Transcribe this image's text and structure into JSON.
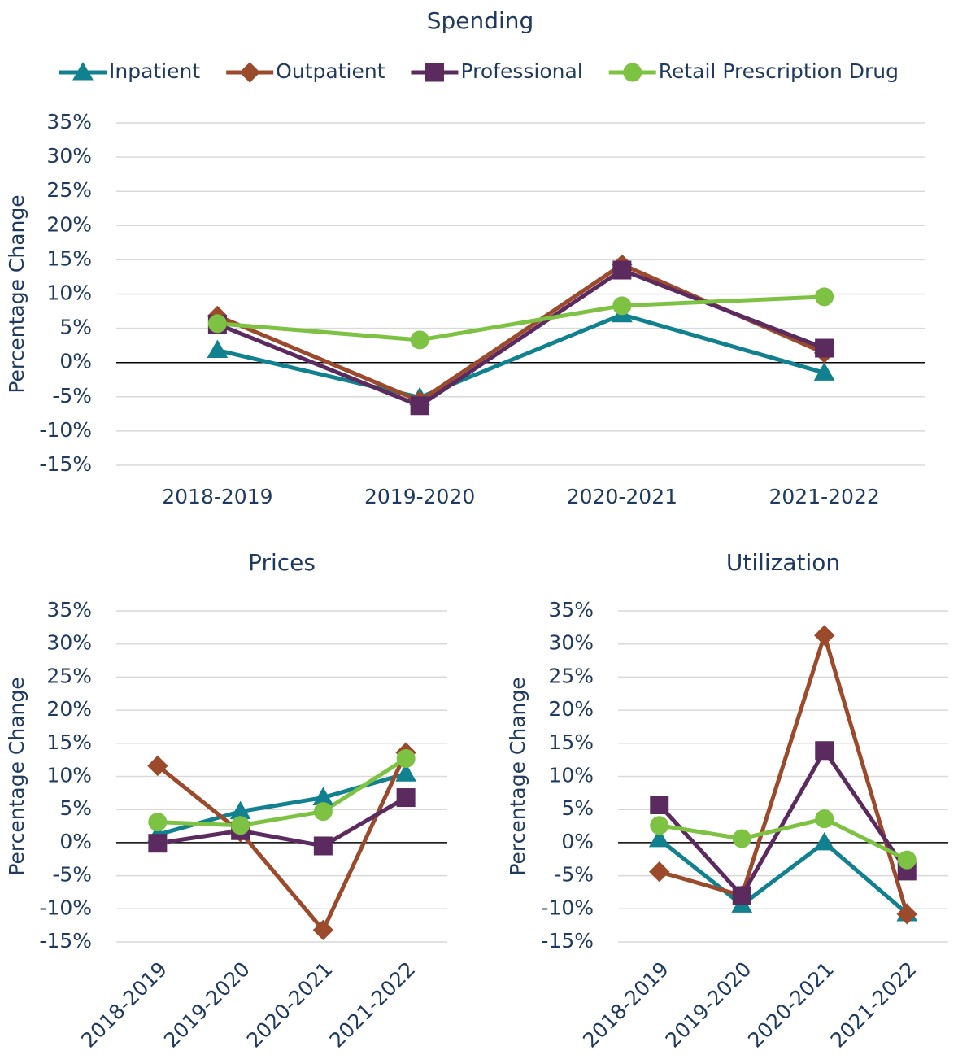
{
  "chart_data": [
    {
      "type": "line",
      "title": "Spending",
      "ylabel": "Percentage Change",
      "categories": [
        "2018-2019",
        "2019-2020",
        "2020-2021",
        "2021-2022"
      ],
      "series": [
        {
          "name": "Inpatient",
          "color": "#11808f",
          "marker": "triangle",
          "values": [
            1.8,
            -5.1,
            7.0,
            -1.5
          ]
        },
        {
          "name": "Outpatient",
          "color": "#9b4a2c",
          "marker": "diamond",
          "values": [
            6.8,
            -5.6,
            14.3,
            1.4
          ]
        },
        {
          "name": "Professional",
          "color": "#5b2a5e",
          "marker": "square",
          "values": [
            5.6,
            -6.3,
            13.5,
            2.1
          ]
        },
        {
          "name": "Retail Prescription Drug",
          "color": "#7dc242",
          "marker": "circle",
          "values": [
            5.7,
            3.3,
            8.3,
            9.6
          ]
        }
      ],
      "ylim": [
        -15,
        35
      ],
      "yticks": [
        {
          "value": -15,
          "label": "-15%"
        },
        {
          "value": -10,
          "label": "-10%"
        },
        {
          "value": -5,
          "label": "-5%"
        },
        {
          "value": 0,
          "label": "0%"
        },
        {
          "value": 5,
          "label": "5%"
        },
        {
          "value": 10,
          "label": "10%"
        },
        {
          "value": 15,
          "label": "15%"
        },
        {
          "value": 20,
          "label": "20%"
        },
        {
          "value": 25,
          "label": "25%"
        },
        {
          "value": 30,
          "label": "30%"
        },
        {
          "value": 35,
          "label": "35%"
        }
      ],
      "grid": true,
      "legend": "top"
    },
    {
      "type": "line",
      "title": "Prices",
      "ylabel": "Percentage Change",
      "categories": [
        "2018-2019",
        "2019-2020",
        "2020-2021",
        "2021-2022"
      ],
      "series": [
        {
          "color": "#11808f",
          "marker": "triangle",
          "values": [
            1.2,
            4.7,
            6.8,
            10.4
          ]
        },
        {
          "color": "#9b4a2c",
          "marker": "diamond",
          "values": [
            11.6,
            1.6,
            -13.2,
            13.6
          ]
        },
        {
          "color": "#5b2a5e",
          "marker": "square",
          "values": [
            -0.1,
            1.8,
            -0.5,
            6.8
          ]
        },
        {
          "color": "#7dc242",
          "marker": "circle",
          "values": [
            3.1,
            2.6,
            4.7,
            12.7
          ]
        }
      ],
      "ylim": [
        -15,
        35
      ],
      "yticks": [
        {
          "value": -15,
          "label": "-15%"
        },
        {
          "value": -10,
          "label": "-10%"
        },
        {
          "value": -5,
          "label": "-5%"
        },
        {
          "value": 0,
          "label": "0%"
        },
        {
          "value": 5,
          "label": "5%"
        },
        {
          "value": 10,
          "label": "10%"
        },
        {
          "value": 15,
          "label": "15%"
        },
        {
          "value": 20,
          "label": "20%"
        },
        {
          "value": 25,
          "label": "25%"
        },
        {
          "value": 30,
          "label": "30%"
        },
        {
          "value": 35,
          "label": "35%"
        }
      ],
      "grid": true,
      "x_label_rotation": -45
    },
    {
      "type": "line",
      "title": "Utilization",
      "ylabel": "Percentage Change",
      "categories": [
        "2018-2019",
        "2019-2020",
        "2020-2021",
        "2021-2022"
      ],
      "series": [
        {
          "color": "#11808f",
          "marker": "triangle",
          "values": [
            0.5,
            -9.4,
            0,
            -10.7
          ]
        },
        {
          "color": "#9b4a2c",
          "marker": "diamond",
          "values": [
            -4.4,
            -8.0,
            31.3,
            -10.8
          ]
        },
        {
          "color": "#5b2a5e",
          "marker": "square",
          "values": [
            5.7,
            -8.0,
            13.9,
            -4.3
          ]
        },
        {
          "color": "#7dc242",
          "marker": "circle",
          "values": [
            2.6,
            0.6,
            3.6,
            -2.6
          ]
        }
      ],
      "ylim": [
        -15,
        35
      ],
      "yticks": [
        {
          "value": -15,
          "label": "-15%"
        },
        {
          "value": -10,
          "label": "-10%"
        },
        {
          "value": -5,
          "label": "-5%"
        },
        {
          "value": 0,
          "label": "0%"
        },
        {
          "value": 5,
          "label": "5%"
        },
        {
          "value": 10,
          "label": "10%"
        },
        {
          "value": 15,
          "label": "15%"
        },
        {
          "value": 20,
          "label": "20%"
        },
        {
          "value": 25,
          "label": "25%"
        },
        {
          "value": 30,
          "label": "30%"
        },
        {
          "value": 35,
          "label": "35%"
        }
      ],
      "grid": true,
      "x_label_rotation": -45
    }
  ]
}
